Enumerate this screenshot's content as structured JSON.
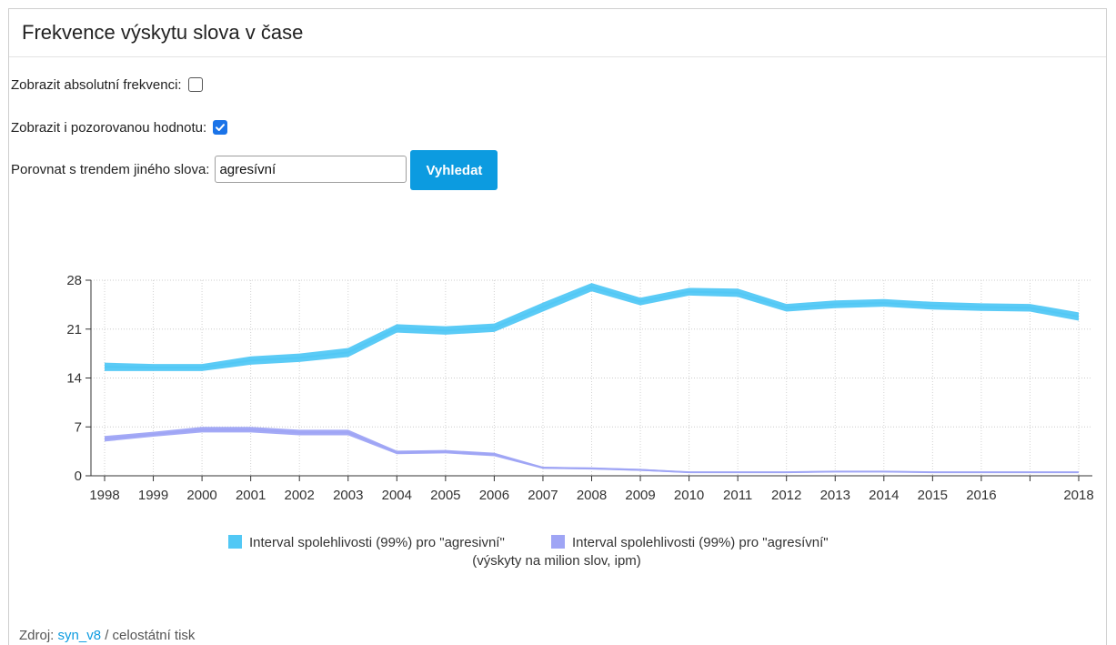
{
  "header": {
    "title": "Frekvence výskytu slova v čase"
  },
  "controls": {
    "absolute_label": "Zobrazit absolutní frekvenci:",
    "absolute_checked": false,
    "observed_label": "Zobrazit i pozorovanou hodnotu:",
    "observed_checked": true,
    "compare_label": "Porovnat s trendem jiného slova:",
    "compare_value": "agresívní",
    "search_button": "Vyhledat"
  },
  "colors": {
    "series1": "#52c8f5",
    "series2": "#9fa5f5",
    "button": "#0c9be0"
  },
  "chart_data": {
    "type": "area",
    "x": [
      "1998",
      "1999",
      "2000",
      "2001",
      "2002",
      "2003",
      "2004",
      "2005",
      "2006",
      "2007",
      "2008",
      "2009",
      "2010",
      "2011",
      "2012",
      "2013",
      "2014",
      "2015",
      "2016",
      "2017",
      "2018"
    ],
    "x_tick_labels": [
      "1998",
      "1999",
      "2000",
      "2001",
      "2002",
      "2003",
      "2004",
      "2005",
      "2006",
      "2007",
      "2008",
      "2009",
      "2010",
      "2011",
      "2012",
      "2013",
      "2014",
      "2015",
      "2016",
      "",
      "2018"
    ],
    "ylim": [
      0,
      28
    ],
    "yticks": [
      0,
      7,
      14,
      21,
      28
    ],
    "grid": true,
    "legend_position": "bottom",
    "series": [
      {
        "name": "Interval spolehlivosti (99%) pro \"agresivní\"",
        "color": "#52c8f5",
        "lower": [
          15.0,
          15.0,
          15.0,
          15.9,
          16.3,
          17.0,
          20.5,
          20.2,
          20.6,
          23.5,
          26.4,
          24.4,
          25.8,
          25.6,
          23.5,
          24.0,
          24.2,
          23.8,
          23.6,
          23.5,
          22.2
        ],
        "upper": [
          16.2,
          16.0,
          16.0,
          17.1,
          17.5,
          18.3,
          21.7,
          21.4,
          21.8,
          24.8,
          27.6,
          25.5,
          26.9,
          26.8,
          24.6,
          25.1,
          25.3,
          24.9,
          24.7,
          24.6,
          23.4
        ]
      },
      {
        "name": "Interval spolehlivosti (99%) pro \"agresívní\"",
        "color": "#9fa5f5",
        "lower": [
          4.9,
          5.6,
          6.2,
          6.2,
          5.8,
          5.8,
          3.1,
          3.2,
          2.8,
          1.0,
          0.9,
          0.7,
          0.4,
          0.4,
          0.4,
          0.5,
          0.5,
          0.4,
          0.4,
          0.4,
          0.4
        ],
        "upper": [
          5.7,
          6.3,
          7.0,
          7.0,
          6.6,
          6.6,
          3.6,
          3.7,
          3.3,
          1.3,
          1.2,
          1.0,
          0.6,
          0.6,
          0.6,
          0.7,
          0.7,
          0.6,
          0.6,
          0.6,
          0.6
        ]
      }
    ],
    "unit_label": "(výskyty na milion slov, ipm)"
  },
  "footer": {
    "prefix": "Zdroj: ",
    "link": "syn_v8",
    "suffix": " / celostátní tisk"
  }
}
